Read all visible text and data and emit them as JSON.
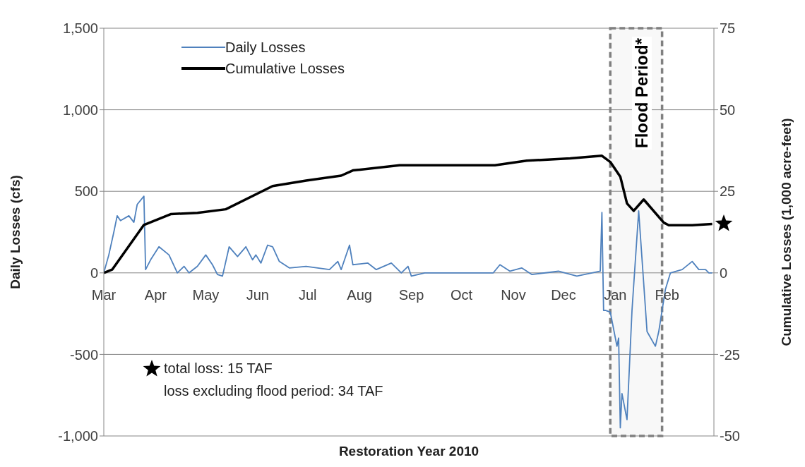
{
  "chart_data": {
    "type": "line",
    "xlabel": "Restoration Year 2010",
    "ylabel": "Daily Losses (cfs)",
    "y2label": "Cumulative Losses (1,000 acre-feet)",
    "xlim": [
      "2010-03-01",
      "2011-03-01"
    ],
    "xticks": [
      {
        "value": "2010-03-01",
        "label": "Mar"
      },
      {
        "value": "2010-04-01",
        "label": "Apr"
      },
      {
        "value": "2010-05-01",
        "label": "May"
      },
      {
        "value": "2010-06-01",
        "label": "Jun"
      },
      {
        "value": "2010-07-01",
        "label": "Jul"
      },
      {
        "value": "2010-08-01",
        "label": "Aug"
      },
      {
        "value": "2010-09-01",
        "label": "Sep"
      },
      {
        "value": "2010-10-01",
        "label": "Oct"
      },
      {
        "value": "2010-11-01",
        "label": "Nov"
      },
      {
        "value": "2010-12-01",
        "label": "Dec"
      },
      {
        "value": "2011-01-01",
        "label": "Jan"
      },
      {
        "value": "2011-02-01",
        "label": "Feb"
      }
    ],
    "ylim": [
      -1000,
      1500
    ],
    "yticks": [
      {
        "value": -1000,
        "label": "-1,000"
      },
      -500,
      0,
      500,
      {
        "value": 1000,
        "label": "1,000"
      },
      {
        "value": 1500,
        "label": "1,500"
      }
    ],
    "y2lim": [
      -50,
      75
    ],
    "y2ticks": [
      -50,
      -25,
      0,
      25,
      50,
      75
    ],
    "grid": "y",
    "legend": "top left",
    "marker": "none",
    "line_style": "solid",
    "series": [
      {
        "name": "Daily Losses",
        "color": "#4f81bd",
        "x": [
          "2010-03-01",
          "2010-03-04",
          "2010-03-07",
          "2010-03-09",
          "2010-03-11",
          "2010-03-16",
          "2010-03-19",
          "2010-03-21",
          "2010-03-25",
          "2010-03-26",
          "2010-03-29",
          "2010-04-03",
          "2010-04-09",
          "2010-04-14",
          "2010-04-18",
          "2010-04-21",
          "2010-04-26",
          "2010-05-01",
          "2010-05-05",
          "2010-05-08",
          "2010-05-11",
          "2010-05-15",
          "2010-05-20",
          "2010-05-25",
          "2010-05-29",
          "2010-05-31",
          "2010-06-03",
          "2010-06-07",
          "2010-06-10",
          "2010-06-14",
          "2010-06-20",
          "2010-06-30",
          "2010-07-14",
          "2010-07-19",
          "2010-07-21",
          "2010-07-26",
          "2010-07-28",
          "2010-08-06",
          "2010-08-11",
          "2010-08-20",
          "2010-08-26",
          "2010-08-30",
          "2010-09-01",
          "2010-09-09",
          "2010-10-20",
          "2010-10-24",
          "2010-10-30",
          "2010-11-06",
          "2010-11-12",
          "2010-11-28",
          "2010-12-09",
          "2010-12-23",
          "2010-12-24",
          "2010-12-25",
          "2010-12-26",
          "2010-12-29",
          "2011-01-02",
          "2011-01-03",
          "2011-01-04",
          "2011-01-05",
          "2011-01-08",
          "2011-01-11",
          "2011-01-15",
          "2011-01-20",
          "2011-01-25",
          "2011-01-27",
          "2011-01-31",
          "2011-02-03",
          "2011-02-10",
          "2011-02-16",
          "2011-02-20",
          "2011-02-24",
          "2011-02-26",
          "2011-02-28"
        ],
        "values": [
          0,
          110,
          250,
          350,
          320,
          350,
          310,
          420,
          470,
          20,
          80,
          160,
          110,
          0,
          40,
          0,
          40,
          110,
          50,
          -10,
          -20,
          160,
          100,
          160,
          80,
          110,
          60,
          170,
          160,
          70,
          30,
          40,
          20,
          70,
          20,
          170,
          50,
          60,
          20,
          60,
          0,
          40,
          -20,
          0,
          0,
          50,
          10,
          30,
          -10,
          10,
          -20,
          10,
          370,
          -230,
          -230,
          -240,
          -450,
          -400,
          -950,
          -740,
          -900,
          -230,
          380,
          -360,
          -450,
          -360,
          -100,
          0,
          20,
          70,
          20,
          20,
          0,
          0
        ]
      },
      {
        "name": "Cumulative Losses",
        "color": "#000000",
        "axis": "y2",
        "x": [
          "2010-03-01",
          "2010-03-06",
          "2010-03-25",
          "2010-04-10",
          "2010-04-26",
          "2010-05-13",
          "2010-06-10",
          "2010-06-30",
          "2010-07-21",
          "2010-07-28",
          "2010-08-25",
          "2010-09-15",
          "2010-10-21",
          "2010-11-09",
          "2010-12-05",
          "2010-12-24",
          "2010-12-29",
          "2011-01-04",
          "2011-01-08",
          "2011-01-12",
          "2011-01-18",
          "2011-01-30",
          "2011-02-02",
          "2011-02-16",
          "2011-02-28"
        ],
        "values": [
          0,
          1,
          14.7,
          18,
          18.4,
          19.5,
          26.6,
          28.3,
          29.8,
          31.4,
          33,
          33,
          33,
          34.4,
          35.1,
          35.9,
          34,
          29.5,
          21.3,
          19,
          22.5,
          15.4,
          14.6,
          14.6,
          15
        ]
      }
    ],
    "bands": [
      {
        "axis": "x",
        "from": "2010-12-29",
        "to": "2011-01-29",
        "label": "Flood Period*",
        "color": "#808080"
      }
    ],
    "annotations": [
      "total loss: 15 TAF",
      "loss excluding flood period: 34 TAF"
    ]
  }
}
